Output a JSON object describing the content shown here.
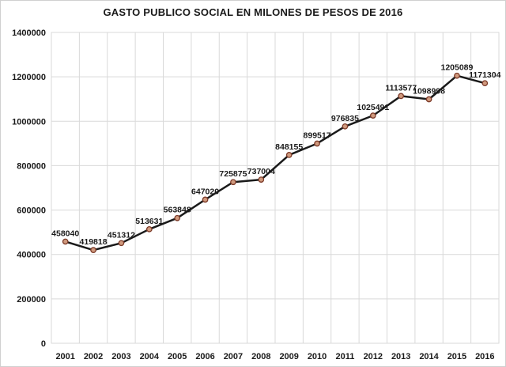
{
  "chart_data": {
    "type": "line",
    "title": "GASTO PUBLICO SOCIAL EN MILONES DE PESOS DE 2016",
    "categories": [
      "2001",
      "2002",
      "2003",
      "2004",
      "2005",
      "2006",
      "2007",
      "2008",
      "2009",
      "2010",
      "2011",
      "2012",
      "2013",
      "2014",
      "2015",
      "2016"
    ],
    "values": [
      458040,
      419818,
      451312,
      513631,
      563848,
      647020,
      725875,
      737004,
      848155,
      899517,
      976835,
      1025491,
      1113577,
      1098998,
      1205089,
      1171304
    ],
    "data_labels": [
      "458040",
      "419818",
      "451312",
      "513631",
      "563848",
      "647020",
      "725875",
      "737004",
      "848155",
      "899517",
      "976835",
      "1025491",
      "1113577",
      "1098998",
      "1205089",
      "1171304"
    ],
    "ylabel": "",
    "xlabel": "",
    "ylim": [
      0,
      1400000
    ],
    "ytick_step": 200000,
    "ytick_labels": [
      "0",
      "200000",
      "400000",
      "600000",
      "800000",
      "1000000",
      "1200000",
      "1400000"
    ],
    "grid": true,
    "legend": "none",
    "colors": {
      "line": "#1a1a1a",
      "marker_fill": "#d09a7e",
      "marker_stroke": "#7c3a28",
      "grid": "#d9d9d9",
      "plot_border": "#d9d9d9",
      "text": "#1a1a1a",
      "background": "#ffffff"
    }
  }
}
